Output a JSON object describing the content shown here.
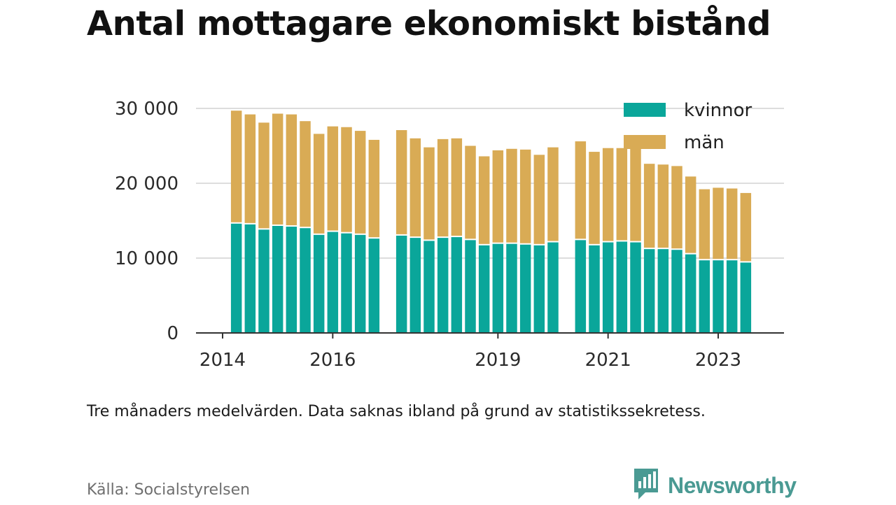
{
  "title": "Antal mottagare ekonomiskt bistånd",
  "note": "Tre månaders medelvärden. Data saknas ibland på grund av statistikssekretess.",
  "source": "Källa: Socialstyrelsen",
  "brand": "Newsworthy",
  "icons": {
    "brand_logo": "bar-chart-speech-bubble-icon"
  },
  "colors": {
    "kvinnor": "#0aa69a",
    "man": "#d9ab55",
    "brand": "#4a9a93"
  },
  "chart_data": {
    "type": "bar",
    "stacked": true,
    "ylim": [
      0,
      30000
    ],
    "y_ticks": [
      {
        "value": 0,
        "label": "0"
      },
      {
        "value": 10000,
        "label": "10 000"
      },
      {
        "value": 20000,
        "label": "20 000"
      },
      {
        "value": 30000,
        "label": "30 000"
      }
    ],
    "x_ticks": [
      {
        "year": 2014,
        "label": "2014"
      },
      {
        "year": 2016,
        "label": "2016"
      },
      {
        "year": 2019,
        "label": "2019"
      },
      {
        "year": 2021,
        "label": "2021"
      },
      {
        "year": 2023,
        "label": "2023"
      }
    ],
    "grid": true,
    "legend_position": "top-right",
    "x": [
      "2014-04",
      "2014-07",
      "2014-10",
      "2015-01",
      "2015-04",
      "2015-07",
      "2015-10",
      "2016-01",
      "2016-04",
      "2016-07",
      "2016-10",
      "2017-04",
      "2017-07",
      "2017-10",
      "2018-01",
      "2018-04",
      "2018-07",
      "2018-10",
      "2019-01",
      "2019-04",
      "2019-07",
      "2019-10",
      "2020-01",
      "2020-07",
      "2020-10",
      "2021-01",
      "2021-04",
      "2021-07",
      "2021-10",
      "2022-01",
      "2022-04",
      "2022-07",
      "2022-10",
      "2023-01",
      "2023-04",
      "2023-07"
    ],
    "series": [
      {
        "name": "kvinnor",
        "values": [
          14600,
          14500,
          13800,
          14300,
          14200,
          14000,
          13100,
          13500,
          13300,
          13100,
          12600,
          13000,
          12700,
          12300,
          12700,
          12800,
          12400,
          11700,
          11900,
          11900,
          11800,
          11700,
          12100,
          12400,
          11700,
          12100,
          12200,
          12100,
          11200,
          11200,
          11100,
          10500,
          9700,
          9700,
          9700,
          9400
        ]
      },
      {
        "name": "män",
        "values": [
          15100,
          14700,
          14300,
          15000,
          15000,
          14300,
          13500,
          14100,
          14200,
          13900,
          13200,
          14100,
          13300,
          12500,
          13200,
          13200,
          12600,
          11900,
          12500,
          12700,
          12700,
          12100,
          12700,
          13200,
          12500,
          12600,
          12500,
          12500,
          11400,
          11300,
          11200,
          10400,
          9500,
          9700,
          9600,
          9300
        ]
      }
    ]
  }
}
